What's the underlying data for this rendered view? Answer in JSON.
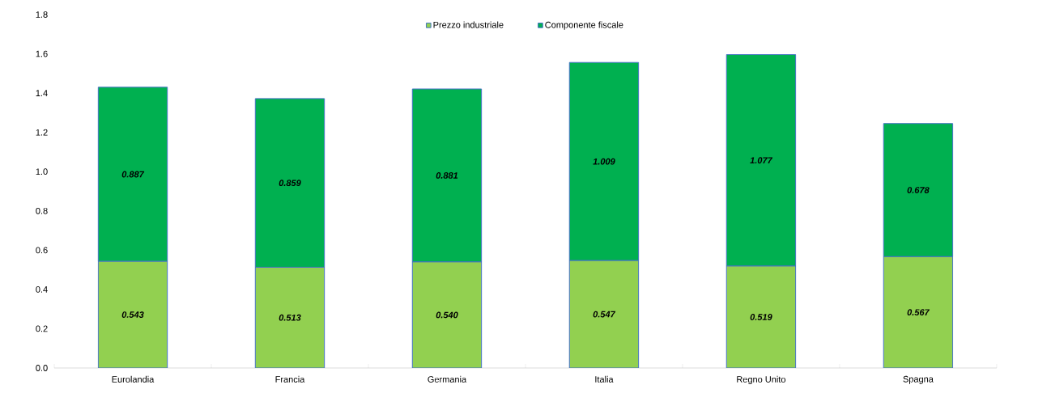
{
  "chart_data": {
    "type": "bar",
    "stacked": true,
    "categories": [
      "Eurolandia",
      "Francia",
      "Germania",
      "Italia",
      "Regno Unito",
      "Spagna"
    ],
    "series": [
      {
        "name": "Prezzo industriale",
        "color": "#92d050",
        "values": [
          0.543,
          0.513,
          0.54,
          0.547,
          0.519,
          0.567
        ],
        "value_labels": [
          "0.543",
          "0.513",
          "0.540",
          "0.547",
          "0.519",
          "0.567"
        ]
      },
      {
        "name": "Componente fiscale",
        "color": "#00b050",
        "values": [
          0.887,
          0.859,
          0.881,
          1.009,
          1.077,
          0.678
        ],
        "value_labels": [
          "0.887",
          "0.859",
          "0.881",
          "1.009",
          "1.077",
          "0.678"
        ]
      }
    ],
    "ylim": [
      0,
      1.8
    ],
    "yticks": [
      {
        "value": 0,
        "label": "0.0"
      },
      {
        "value": 0.2,
        "label": "0.2"
      },
      {
        "value": 0.4,
        "label": "0.4"
      },
      {
        "value": 0.6,
        "label": "0.6"
      },
      {
        "value": 0.8,
        "label": "0.8"
      },
      {
        "value": 1.0,
        "label": "1.0"
      },
      {
        "value": 1.2,
        "label": "1.2"
      },
      {
        "value": 1.4,
        "label": "1.4"
      },
      {
        "value": 1.6,
        "label": "1.6"
      },
      {
        "value": 1.8,
        "label": "1.8"
      }
    ],
    "legend": "top",
    "grid": false
  }
}
